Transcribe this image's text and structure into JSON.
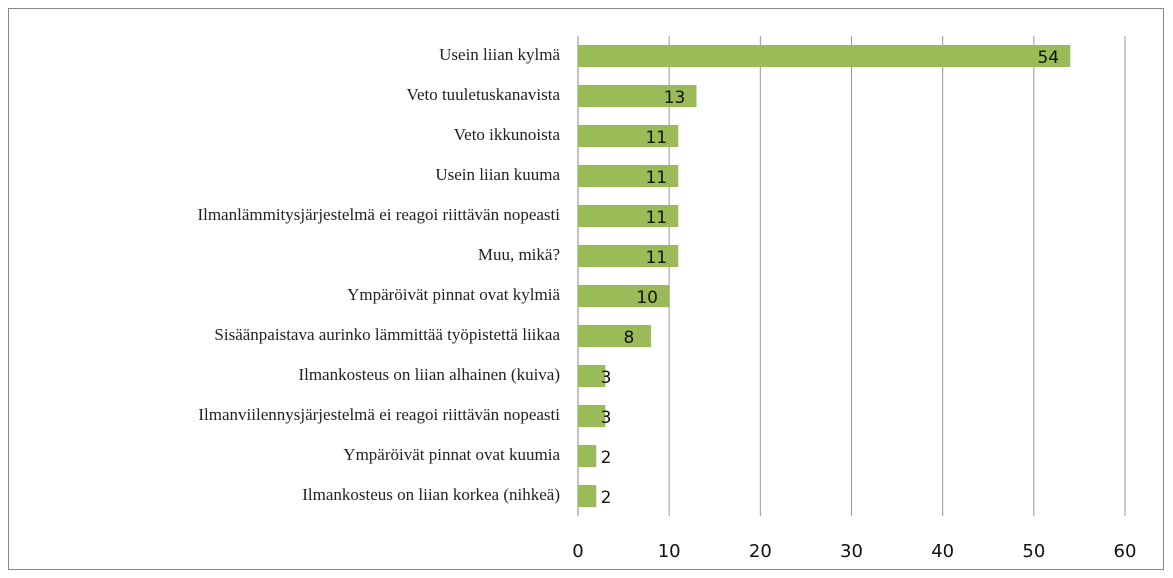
{
  "chart_data": {
    "type": "bar",
    "orientation": "horizontal",
    "categories": [
      "Usein liian kylmä",
      "Veto tuuletuskanavista",
      "Veto ikkunoista",
      "Usein liian kuuma",
      "Ilmanlämmitysjärjestelmä ei reagoi riittävän nopeasti",
      "Muu, mikä?",
      "Ympäröivät pinnat ovat kylmiä",
      "Sisäänpaistava aurinko lämmittää työpistettä liikaa",
      "Ilmankosteus on liian alhainen (kuiva)",
      "Ilmanviilennysjärjestelmä ei reagoi riittävän nopeasti",
      "Ympäröivät pinnat ovat kuumia",
      "Ilmankosteus on liian korkea (nihkeä)"
    ],
    "values": [
      54,
      13,
      11,
      11,
      11,
      11,
      10,
      8,
      3,
      3,
      2,
      2
    ],
    "color": "#9bbb59",
    "xlim": [
      0,
      60
    ],
    "xticks": [
      0,
      10,
      20,
      30,
      40,
      50,
      60
    ],
    "grid": true
  }
}
